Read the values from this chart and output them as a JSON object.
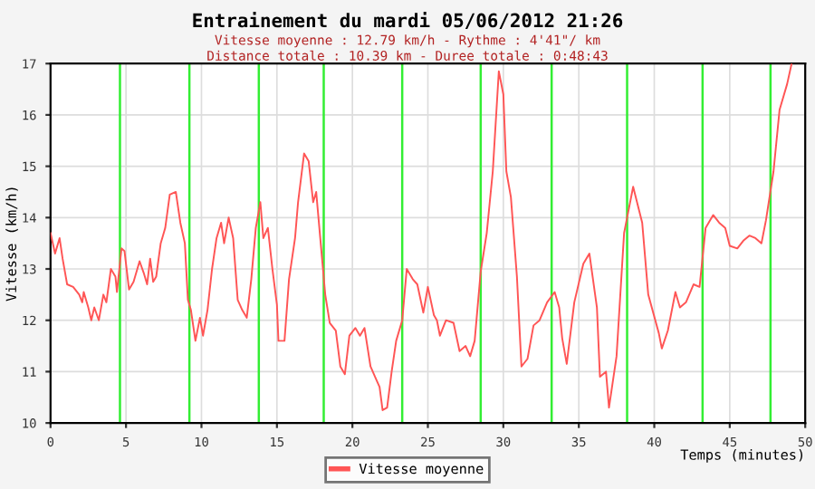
{
  "chart_data": {
    "type": "line",
    "title": "Entrainement du mardi 05/06/2012 21:26",
    "subtitle": "Vitesse moyenne : 12.79 km/h - Rythme : 4'41\"/ km\nDistance totale : 10.39 km - Duree totale : 0:48:43",
    "xlabel": "Temps (minutes)",
    "ylabel": "Vitesse (km/h)",
    "xlim": [
      0,
      50
    ],
    "xticks": [
      0,
      5,
      10,
      15,
      20,
      25,
      30,
      35,
      40,
      45,
      50
    ],
    "ylim": [
      10,
      17
    ],
    "yticks": [
      10,
      11,
      12,
      13,
      14,
      15,
      16,
      17
    ],
    "grid": true,
    "legend": "bottom",
    "ref_lines": [
      {
        "axis": "x",
        "value": 4.6,
        "color": "#33ee33"
      },
      {
        "axis": "x",
        "value": 9.2,
        "color": "#33ee33"
      },
      {
        "axis": "x",
        "value": 13.8,
        "color": "#33ee33"
      },
      {
        "axis": "x",
        "value": 18.1,
        "color": "#33ee33"
      },
      {
        "axis": "x",
        "value": 23.3,
        "color": "#33ee33"
      },
      {
        "axis": "x",
        "value": 28.5,
        "color": "#33ee33"
      },
      {
        "axis": "x",
        "value": 33.2,
        "color": "#33ee33"
      },
      {
        "axis": "x",
        "value": 38.2,
        "color": "#33ee33"
      },
      {
        "axis": "x",
        "value": 43.2,
        "color": "#33ee33"
      },
      {
        "axis": "x",
        "value": 47.7,
        "color": "#33ee33"
      }
    ],
    "series": [
      {
        "name": "Vitesse moyenne",
        "color": "#ff5555",
        "x": [
          0,
          0.3,
          0.6,
          0.8,
          1.1,
          1.5,
          1.9,
          2.1,
          2.2,
          2.5,
          2.7,
          2.9,
          3.2,
          3.5,
          3.7,
          4.0,
          4.3,
          4.4,
          4.7,
          4.9,
          5.2,
          5.5,
          5.9,
          6.2,
          6.4,
          6.6,
          6.8,
          7.0,
          7.3,
          7.6,
          7.9,
          8.3,
          8.6,
          8.9,
          9.1,
          9.3,
          9.6,
          9.9,
          10.1,
          10.4,
          10.7,
          11.0,
          11.3,
          11.5,
          11.8,
          12.1,
          12.4,
          12.7,
          13.0,
          13.3,
          13.6,
          13.9,
          14.1,
          14.4,
          14.7,
          15.0,
          15.1,
          15.5,
          15.8,
          16.2,
          16.4,
          16.8,
          17.1,
          17.4,
          17.6,
          17.9,
          18.2,
          18.5,
          18.9,
          19.2,
          19.5,
          19.8,
          20.2,
          20.5,
          20.8,
          21.2,
          21.5,
          21.8,
          22.0,
          22.3,
          22.6,
          22.9,
          23.3,
          23.6,
          24.0,
          24.3,
          24.7,
          25.0,
          25.4,
          25.6,
          25.8,
          26.2,
          26.7,
          27.1,
          27.5,
          27.8,
          28.1,
          28.5,
          28.9,
          29.3,
          29.7,
          30.0,
          30.2,
          30.5,
          30.9,
          31.2,
          31.6,
          32.0,
          32.4,
          32.9,
          33.4,
          33.7,
          33.9,
          34.2,
          34.7,
          35.3,
          35.7,
          36.2,
          36.4,
          36.8,
          37.0,
          37.5,
          38.0,
          38.6,
          39.2,
          39.6,
          40.3,
          40.5,
          40.9,
          41.4,
          41.7,
          42.1,
          42.6,
          43.0,
          43.4,
          43.9,
          44.3,
          44.7,
          45.0,
          45.5,
          45.9,
          46.3,
          46.7,
          47.1,
          47.4,
          47.9,
          48.3,
          48.8,
          49.1
        ],
        "values": [
          13.7,
          13.3,
          13.6,
          13.2,
          12.7,
          12.65,
          12.5,
          12.35,
          12.55,
          12.25,
          12.0,
          12.25,
          12.0,
          12.5,
          12.35,
          13.0,
          12.85,
          12.55,
          13.4,
          13.35,
          12.6,
          12.75,
          13.15,
          12.9,
          12.7,
          13.2,
          12.75,
          12.85,
          13.5,
          13.8,
          14.45,
          14.5,
          13.9,
          13.5,
          12.4,
          12.2,
          11.6,
          12.05,
          11.7,
          12.2,
          13.0,
          13.6,
          13.9,
          13.5,
          14.0,
          13.6,
          12.4,
          12.2,
          12.05,
          12.8,
          13.8,
          14.3,
          13.6,
          13.8,
          13.0,
          12.3,
          11.6,
          11.6,
          12.8,
          13.6,
          14.3,
          15.25,
          15.1,
          14.3,
          14.5,
          13.5,
          12.5,
          11.95,
          11.8,
          11.1,
          10.95,
          11.7,
          11.85,
          11.7,
          11.85,
          11.1,
          10.9,
          10.7,
          10.25,
          10.3,
          11.0,
          11.6,
          12.0,
          13.0,
          12.8,
          12.7,
          12.15,
          12.65,
          12.1,
          12.0,
          11.7,
          12.0,
          11.95,
          11.4,
          11.5,
          11.3,
          11.6,
          12.95,
          13.7,
          14.9,
          16.85,
          16.4,
          14.9,
          14.4,
          12.85,
          11.1,
          11.25,
          11.9,
          12.0,
          12.35,
          12.55,
          12.25,
          11.65,
          11.15,
          12.35,
          13.1,
          13.3,
          12.25,
          10.9,
          11.0,
          10.3,
          11.3,
          13.7,
          14.6,
          13.9,
          12.5,
          11.75,
          11.45,
          11.8,
          12.55,
          12.25,
          12.35,
          12.7,
          12.65,
          13.8,
          14.05,
          13.9,
          13.8,
          13.45,
          13.4,
          13.55,
          13.65,
          13.6,
          13.5,
          13.95,
          14.9,
          16.1,
          16.6,
          17.0
        ]
      }
    ]
  }
}
